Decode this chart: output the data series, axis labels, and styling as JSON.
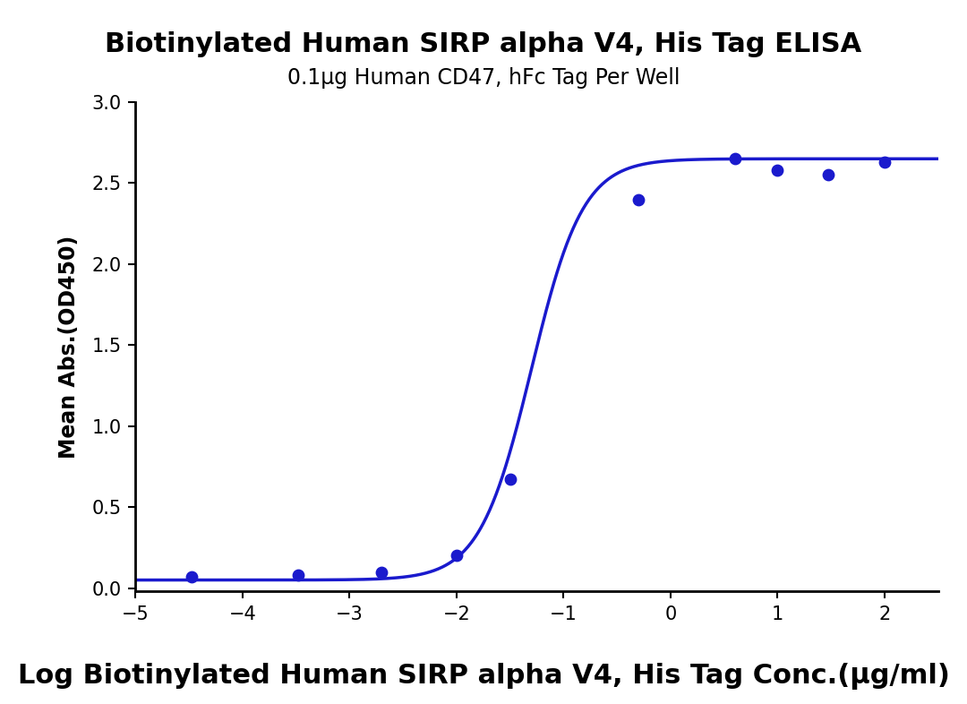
{
  "title": "Biotinylated Human SIRP alpha V4, His Tag ELISA",
  "subtitle": "0.1μg Human CD47, hFc Tag Per Well",
  "xlabel": "Log Biotinylated Human SIRP alpha V4, His Tag Conc.(μg/ml)",
  "ylabel": "Mean Abs.(OD450)",
  "scatter_x": [
    -4.477,
    -3.477,
    -2.699,
    -2.0,
    -1.5,
    -0.301,
    0.602,
    1.0,
    1.477,
    2.0
  ],
  "scatter_y": [
    0.068,
    0.08,
    0.1,
    0.2,
    0.67,
    2.4,
    2.65,
    2.58,
    2.55,
    2.63
  ],
  "xlim": [
    -5,
    2.5
  ],
  "ylim": [
    -0.02,
    3.0
  ],
  "xticks": [
    -5,
    -4,
    -3,
    -2,
    -1,
    0,
    1,
    2
  ],
  "yticks": [
    0.0,
    0.5,
    1.0,
    1.5,
    2.0,
    2.5,
    3.0
  ],
  "curve_color": "#1a1acd",
  "dot_color": "#1a1acd",
  "title_fontsize": 22,
  "subtitle_fontsize": 17,
  "xlabel_fontsize": 22,
  "ylabel_fontsize": 17,
  "tick_fontsize": 15,
  "background_color": "#ffffff",
  "dot_size": 80
}
